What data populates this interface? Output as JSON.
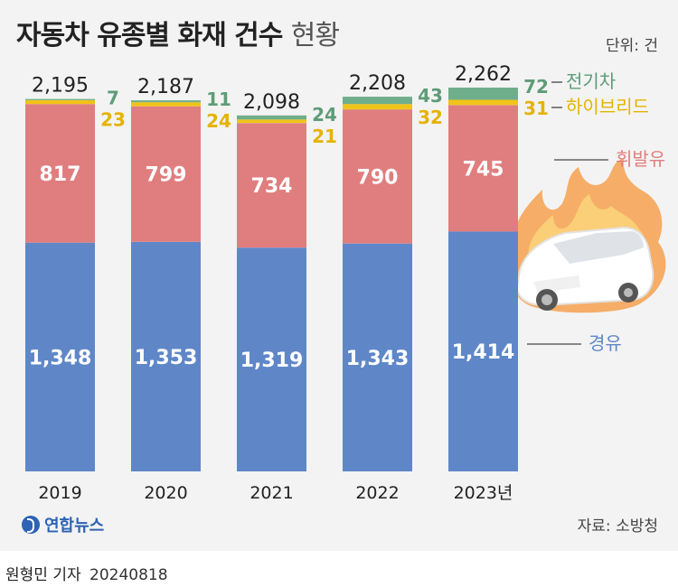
{
  "header": {
    "title": "자동차 유종별 화재 건수",
    "subtitle": "현황",
    "unit": "단위: 건"
  },
  "footer": {
    "logo_text": "연합뉴스",
    "source": "자료: 소방청",
    "author": "원형민 기자",
    "date": "20240818"
  },
  "colors": {
    "diesel": "#5f87c8",
    "gasoline": "#e07e7f",
    "hybrid": "#f0c419",
    "electric": "#6fae8a"
  },
  "chart_data": {
    "type": "bar",
    "stacked": true,
    "categories": [
      "2019",
      "2020",
      "2021",
      "2022",
      "2023년"
    ],
    "totals": [
      "2,195",
      "2,187",
      "2,098",
      "2,208",
      "2,262"
    ],
    "series": [
      {
        "name": "경유",
        "values": [
          1348,
          1353,
          1319,
          1343,
          1414
        ],
        "labels": [
          "1,348",
          "1,353",
          "1,319",
          "1,343",
          "1,414"
        ]
      },
      {
        "name": "휘발유",
        "values": [
          817,
          799,
          734,
          790,
          745
        ],
        "labels": [
          "817",
          "799",
          "734",
          "790",
          "745"
        ]
      },
      {
        "name": "하이브리드",
        "values": [
          23,
          24,
          21,
          32,
          31
        ],
        "labels": [
          "23",
          "24",
          "21",
          "32",
          "31"
        ]
      },
      {
        "name": "전기차",
        "values": [
          7,
          11,
          24,
          43,
          72
        ],
        "labels": [
          "7",
          "11",
          "24",
          "43",
          "72"
        ]
      }
    ],
    "ylim": [
      0,
      2262
    ],
    "legend": "right, labels beside last bar"
  }
}
